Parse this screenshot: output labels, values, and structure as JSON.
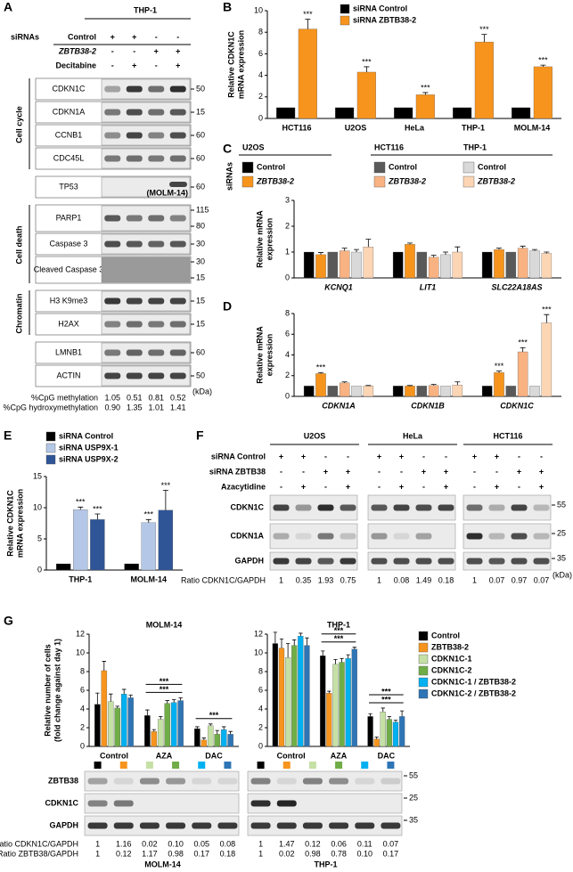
{
  "chart_data": [
    {
      "panel": "B",
      "type": "bar",
      "ylabel": [
        "Relative CDKN1C",
        "mRNA expression"
      ],
      "categories": [
        "HCT116",
        "U2OS",
        "HeLa",
        "THP-1",
        "MOLM-14"
      ],
      "series": [
        {
          "name": "siRNA Control",
          "color": "#000000",
          "values": [
            1,
            1,
            1,
            1,
            1
          ]
        },
        {
          "name": "siRNA ZBTB38-2",
          "color": "#f7941d",
          "values": [
            8.3,
            4.3,
            2.2,
            7.1,
            4.8
          ],
          "errors": [
            0.9,
            0.5,
            0.2,
            0.7,
            0.15
          ],
          "annotations": [
            "***",
            "***",
            "***",
            "***",
            "***"
          ]
        }
      ],
      "ylim": [
        0,
        10
      ],
      "yticks": [
        0,
        2,
        4,
        6,
        8,
        10
      ]
    },
    {
      "panel": "C",
      "type": "bar",
      "legend_title": "siRNAs",
      "legend_groups": [
        "U2OS",
        "HCT116",
        "THP-1"
      ],
      "ylabel": [
        "Relative mRNA",
        "expression"
      ],
      "categories": [
        "KCNQ1",
        "LIT1",
        "SLC22A18AS"
      ],
      "series": [
        {
          "name": "Control",
          "color": "#000000",
          "values": [
            1,
            1,
            1
          ]
        },
        {
          "name": "ZBTB38-2",
          "color": "#f7941d",
          "values": [
            0.9,
            1.3,
            1.1
          ],
          "errors": [
            0.08,
            0.05,
            0.05
          ]
        },
        {
          "name": "Control",
          "color": "#595959",
          "values": [
            1,
            1,
            1
          ]
        },
        {
          "name": "ZBTB38-2",
          "color": "#f9b282",
          "values": [
            1.05,
            0.8,
            1.15
          ],
          "errors": [
            0.1,
            0.08,
            0.08
          ]
        },
        {
          "name": "Control",
          "color": "#d9d9d9",
          "values": [
            1.0,
            0.9,
            1.05
          ],
          "errors": [
            0.1,
            0.1,
            0.05
          ]
        },
        {
          "name": "ZBTB38-2",
          "color": "#fcd5b4",
          "values": [
            1.2,
            1.0,
            0.95
          ],
          "errors": [
            0.3,
            0.2,
            0.05
          ]
        }
      ],
      "ylim": [
        0,
        3
      ],
      "yticks": [
        0,
        1,
        2,
        3
      ]
    },
    {
      "panel": "D",
      "type": "bar",
      "ylabel": [
        "Relative mRNA",
        "expression"
      ],
      "categories": [
        "CDKN1A",
        "CDKN1B",
        "CDKN1C"
      ],
      "series": [
        {
          "color": "#000000",
          "values": [
            1,
            1,
            1
          ]
        },
        {
          "color": "#f7941d",
          "values": [
            2.2,
            1.0,
            2.3
          ],
          "errors": [
            0.1,
            0.05,
            0.15
          ],
          "annotations": [
            "***",
            null,
            "***"
          ]
        },
        {
          "color": "#595959",
          "values": [
            1,
            1,
            1
          ]
        },
        {
          "color": "#f9b282",
          "values": [
            1.3,
            1.05,
            4.3
          ],
          "errors": [
            0.1,
            0.1,
            0.4
          ],
          "annotations": [
            null,
            null,
            "***"
          ]
        },
        {
          "color": "#d9d9d9",
          "values": [
            1,
            1,
            1
          ]
        },
        {
          "color": "#fcd5b4",
          "values": [
            1.0,
            1.1,
            7.1
          ],
          "errors": [
            0.05,
            0.3,
            0.8
          ],
          "annotations": [
            null,
            null,
            "***"
          ]
        }
      ],
      "ylim": [
        0,
        8
      ],
      "yticks": [
        0,
        2,
        4,
        6,
        8
      ]
    },
    {
      "panel": "E",
      "type": "bar",
      "ylabel": [
        "Relative CDKN1C",
        "mRNA expression"
      ],
      "categories": [
        "THP-1",
        "MOLM-14"
      ],
      "series": [
        {
          "name": "siRNA Control",
          "color": "#000000",
          "values": [
            1,
            1
          ]
        },
        {
          "name": "siRNA USP9X-1",
          "color": "#b4c7e7",
          "values": [
            9.7,
            7.6
          ],
          "errors": [
            0.4,
            0.5
          ],
          "annotations": [
            "***",
            "***"
          ]
        },
        {
          "name": "siRNA USP9X-2",
          "color": "#2f5597",
          "values": [
            8.1,
            9.6
          ],
          "errors": [
            0.9,
            3.2
          ],
          "annotations": [
            "***",
            "***"
          ]
        }
      ],
      "ylim": [
        0,
        15
      ],
      "yticks": [
        0,
        5,
        10,
        15
      ]
    },
    {
      "panel": "G",
      "type": "bar",
      "title": "MOLM-14",
      "ylabel": [
        "Relative number of cells",
        "(fold change against day 1)"
      ],
      "categories": [
        "Control",
        "AZA",
        "DAC"
      ],
      "series": [
        {
          "color": "#000000",
          "values": [
            4.5,
            3.3,
            1.9
          ],
          "errors": [
            1.2,
            0.6,
            0.2
          ]
        },
        {
          "color": "#f7941d",
          "values": [
            8.1,
            1.6,
            0.7
          ],
          "errors": [
            1.0,
            0.2,
            0.2
          ]
        },
        {
          "color": "#c5e0a5",
          "values": [
            4.8,
            2.9,
            2.2
          ],
          "errors": [
            0.8,
            0.3,
            0.2
          ]
        },
        {
          "color": "#70ad47",
          "values": [
            4.1,
            4.6,
            1.3
          ],
          "errors": [
            0.2,
            0.3,
            0.4
          ]
        },
        {
          "color": "#00b0f0",
          "values": [
            5.6,
            4.7,
            1.8
          ],
          "errors": [
            0.5,
            0.3,
            0.3
          ]
        },
        {
          "color": "#2e75b6",
          "values": [
            5.2,
            4.9,
            1.3
          ],
          "errors": [
            0.3,
            0.3,
            0.3
          ]
        }
      ],
      "annotations": [
        [],
        [
          "***",
          "***"
        ],
        [
          "***"
        ]
      ],
      "ylim": [
        0,
        12
      ],
      "yticks": [
        0,
        2,
        4,
        6,
        8,
        10,
        12
      ]
    },
    {
      "type": "bar",
      "title": "THP-1",
      "categories": [
        "Control",
        "AZA",
        "DAC"
      ],
      "series": [
        {
          "name": "Control",
          "color": "#000000",
          "values": [
            11,
            9.7,
            3.2
          ],
          "errors": [
            1.2,
            0.5,
            0.3
          ]
        },
        {
          "name": "ZBTB38-2",
          "color": "#f7941d",
          "values": [
            10.5,
            5.7,
            0.8
          ],
          "errors": [
            1.0,
            0.2,
            0.2
          ]
        },
        {
          "name": "CDKN1C-1",
          "color": "#c5e0a5",
          "values": [
            9.5,
            8.8,
            3.7
          ],
          "errors": [
            1.5,
            0.5,
            0.4
          ]
        },
        {
          "name": "CDKN1C-2",
          "color": "#70ad47",
          "values": [
            10.8,
            9.0,
            2.9
          ],
          "errors": [
            0.6,
            0.4,
            0.3
          ]
        },
        {
          "name": "CDKN1C-1 / ZBTB38-2",
          "color": "#00b0f0",
          "values": [
            11.8,
            9.4,
            2.6
          ],
          "errors": [
            0.3,
            0.4,
            0.2
          ]
        },
        {
          "name": "CDKN1C-2 / ZBTB38-2",
          "color": "#2e75b6",
          "values": [
            10.8,
            10.4,
            3.2
          ],
          "errors": [
            0.8,
            0.2,
            0.6
          ]
        }
      ],
      "annotations": [
        [],
        [
          "***",
          "***"
        ],
        [
          "***",
          "***"
        ]
      ],
      "ylim": [
        0,
        12
      ],
      "yticks": [
        0,
        2,
        4,
        6,
        8,
        10,
        12
      ]
    }
  ],
  "panel_a": {
    "label": "A",
    "title": "THP-1",
    "treatment_title": "siRNAs",
    "treatments": [
      {
        "name": "Control",
        "signs": [
          "+",
          "+",
          "-",
          "-"
        ]
      },
      {
        "name": "ZBTB38-2",
        "signs": [
          "-",
          "-",
          "+",
          "+"
        ]
      },
      {
        "name": "Decitabine",
        "signs": [
          "-",
          "+",
          "-",
          "+"
        ]
      }
    ],
    "sections": [
      {
        "group": "Cell cycle",
        "rows": [
          {
            "name": "CDKN1C",
            "markers": [
              50
            ]
          },
          {
            "name": "CDKN1A",
            "markers": [
              15
            ]
          },
          {
            "name": "CCNB1",
            "markers": [
              60
            ]
          },
          {
            "name": "CDC45L",
            "markers": [
              60
            ]
          }
        ]
      },
      {
        "rows": [
          {
            "name": "TP53",
            "markers": [
              60
            ],
            "note": "(MOLM-14)"
          }
        ]
      },
      {
        "group": "Cell death",
        "rows": [
          {
            "name": "PARP1",
            "markers": [
              115,
              80
            ]
          },
          {
            "name": "Caspase 3",
            "markers": [
              30
            ]
          },
          {
            "name": "Cleaved Caspase 3",
            "markers": [
              30,
              15
            ]
          }
        ]
      },
      {
        "group": "Chromatin",
        "rows": [
          {
            "name": "H3 K9me3",
            "markers": [
              15
            ]
          },
          {
            "name": "H2AX",
            "markers": [
              15
            ]
          }
        ]
      },
      {
        "rows": [
          {
            "name": "LMNB1",
            "markers": [
              60
            ]
          },
          {
            "name": "ACTIN",
            "markers": [
              50
            ]
          }
        ]
      }
    ],
    "kda": "(kDa)",
    "quant": [
      {
        "name": "%CpG methylation",
        "values": [
          "1.05",
          "0.51",
          "0.81",
          "0.52"
        ]
      },
      {
        "name": "%CpG hydroxymethylation",
        "values": [
          "0.90",
          "1.35",
          "1.01",
          "1.41"
        ]
      }
    ]
  },
  "panel_f": {
    "label": "F",
    "cells": [
      "U2OS",
      "HeLa",
      "HCT116"
    ],
    "treatments": [
      {
        "name": "siRNA Control",
        "signs": [
          "+",
          "+",
          "-",
          "-"
        ]
      },
      {
        "name": "siRNA ZBTB38",
        "signs": [
          "-",
          "-",
          "+",
          "+"
        ]
      },
      {
        "name": "Azacytidine",
        "signs": [
          "-",
          "+",
          "-",
          "+"
        ]
      }
    ],
    "rows": [
      {
        "name": "CDKN1C",
        "marker": 55
      },
      {
        "name": "CDKN1A",
        "marker": 25
      },
      {
        "name": "GAPDH",
        "marker": 35
      }
    ],
    "kda": "(kDa)",
    "ratio": {
      "name": "Ratio CDKN1C/GAPDH",
      "values": [
        [
          "1",
          "0.35",
          "1.93",
          "0.75"
        ],
        [
          "1",
          "0.08",
          "1.49",
          "0.18"
        ],
        [
          "1",
          "0.07",
          "0.97",
          "0.07"
        ]
      ]
    }
  },
  "panel_g_blots": {
    "cells": [
      "MOLM-14",
      "THP-1"
    ],
    "rows": [
      {
        "name": "ZBTB38",
        "marker": 55
      },
      {
        "name": "CDKN1C",
        "marker": 25
      },
      {
        "name": "GAPDH",
        "marker": 35
      }
    ],
    "ratios": [
      {
        "name": "Ratio CDKN1C/GAPDH",
        "values": [
          [
            "1",
            "1.16",
            "0.02",
            "0.10",
            "0.05",
            "0.08"
          ],
          [
            "1",
            "1.47",
            "0.12",
            "0.06",
            "0.11",
            "0.07"
          ]
        ]
      },
      {
        "name": "Ratio ZBTB38/GAPDH",
        "values": [
          [
            "1",
            "0.12",
            "1.17",
            "0.98",
            "0.17",
            "0.18"
          ],
          [
            "1",
            "0.02",
            "0.98",
            "0.78",
            "0.10",
            "0.17"
          ]
        ]
      }
    ]
  }
}
